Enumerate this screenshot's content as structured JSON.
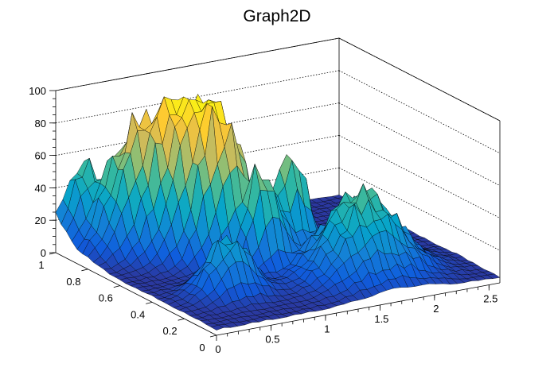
{
  "chart_data": {
    "type": "surface",
    "title": "Graph2D",
    "xlabel": "",
    "ylabel": "",
    "zlabel": "",
    "xlim": [
      0,
      2.6
    ],
    "ylim": [
      0,
      1.0
    ],
    "zlim": [
      0,
      100
    ],
    "x_ticks": [
      "0",
      "0.5",
      "1",
      "1.5",
      "2",
      "2.5"
    ],
    "y_ticks": [
      "0",
      "0.2",
      "0.4",
      "0.6",
      "0.8",
      "1"
    ],
    "z_ticks": [
      "0",
      "20",
      "40",
      "60",
      "80",
      "100"
    ],
    "grid": true,
    "colormap": [
      "#352a87",
      "#0f5cdd",
      "#1481d6",
      "#06a4ca",
      "#2eb7a4",
      "#87bf77",
      "#d1bb59",
      "#fec832",
      "#f9fb0e"
    ],
    "mesh_color": "#000000",
    "peaks": [
      {
        "x": 0.78,
        "y": 0.74,
        "z": 100,
        "spread": 0.22
      },
      {
        "x": 0.95,
        "y": 0.6,
        "z": 90,
        "spread": 0.18
      },
      {
        "x": 0.45,
        "y": 0.85,
        "z": 70,
        "spread": 0.2
      },
      {
        "x": 1.45,
        "y": 0.52,
        "z": 72,
        "spread": 0.12
      },
      {
        "x": 1.1,
        "y": 0.45,
        "z": 62,
        "spread": 0.12
      },
      {
        "x": 1.7,
        "y": 0.25,
        "z": 58,
        "spread": 0.3
      },
      {
        "x": 0.2,
        "y": 1.0,
        "z": 50,
        "spread": 0.15
      },
      {
        "x": 0.55,
        "y": 0.3,
        "z": 40,
        "spread": 0.18
      }
    ]
  }
}
